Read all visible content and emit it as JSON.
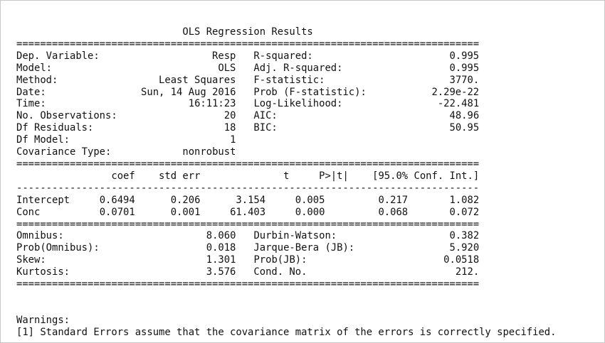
{
  "title": "OLS Regression Results",
  "heavy_rule": "==============================================================================",
  "light_rule": "------------------------------------------------------------------------------",
  "model_info": [
    {
      "left_label": "Dep. Variable:",
      "left_value": "Resp",
      "right_label": "R-squared:",
      "right_value": "0.995"
    },
    {
      "left_label": "Model:",
      "left_value": "OLS",
      "right_label": "Adj. R-squared:",
      "right_value": "0.995"
    },
    {
      "left_label": "Method:",
      "left_value": "Least Squares",
      "right_label": "F-statistic:",
      "right_value": "3770."
    },
    {
      "left_label": "Date:",
      "left_value": "Sun, 14 Aug 2016",
      "right_label": "Prob (F-statistic):",
      "right_value": "2.29e-22"
    },
    {
      "left_label": "Time:",
      "left_value": "16:11:23",
      "right_label": "Log-Likelihood:",
      "right_value": "-22.481"
    },
    {
      "left_label": "No. Observations:",
      "left_value": "20",
      "right_label": "AIC:",
      "right_value": "48.96"
    },
    {
      "left_label": "Df Residuals:",
      "left_value": "18",
      "right_label": "BIC:",
      "right_value": "50.95"
    },
    {
      "left_label": "Df Model:",
      "left_value": "1",
      "right_label": "",
      "right_value": ""
    },
    {
      "left_label": "Covariance Type:",
      "left_value": "nonrobust",
      "right_label": "",
      "right_value": ""
    }
  ],
  "coef_table": {
    "headers": [
      "",
      "coef",
      "std err",
      "t",
      "P>|t|",
      "[95.0% Conf. Int.]"
    ],
    "rows": [
      {
        "name": "Intercept",
        "coef": "0.6494",
        "std_err": "0.206",
        "t": "3.154",
        "p": "0.005",
        "ci_low": "0.217",
        "ci_high": "1.082"
      },
      {
        "name": "Conc",
        "coef": "0.0701",
        "std_err": "0.001",
        "t": "61.403",
        "p": "0.000",
        "ci_low": "0.068",
        "ci_high": "0.072"
      }
    ]
  },
  "diagnostics": [
    {
      "left_label": "Omnibus:",
      "left_value": "8.060",
      "right_label": "Durbin-Watson:",
      "right_value": "0.382"
    },
    {
      "left_label": "Prob(Omnibus):",
      "left_value": "0.018",
      "right_label": "Jarque-Bera (JB):",
      "right_value": "5.920"
    },
    {
      "left_label": "Skew:",
      "left_value": "1.301",
      "right_label": "Prob(JB):",
      "right_value": "0.0518"
    },
    {
      "left_label": "Kurtosis:",
      "left_value": "3.576",
      "right_label": "Cond. No.",
      "right_value": "212."
    }
  ],
  "warnings": {
    "heading": "Warnings:",
    "items": [
      "[1] Standard Errors assume that the covariance matrix of the errors is correctly specified."
    ]
  }
}
